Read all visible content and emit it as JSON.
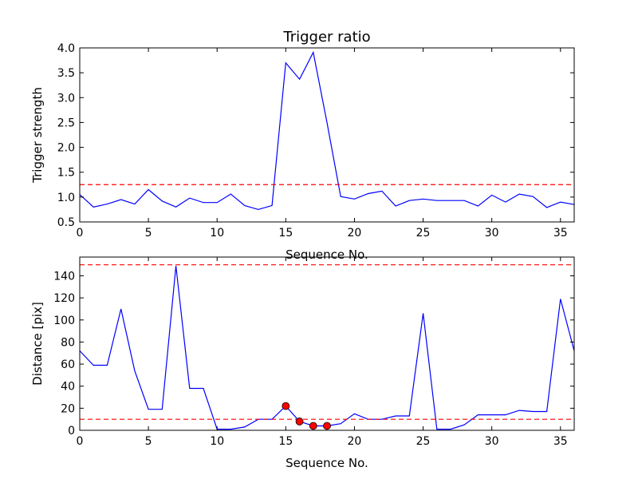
{
  "chart_data": [
    {
      "type": "line",
      "title": "Trigger ratio",
      "xlabel": "Sequence No.",
      "ylabel": "Trigger strength",
      "xlim": [
        0,
        36
      ],
      "ylim": [
        0.5,
        4.0
      ],
      "xticks": [
        "0",
        "5",
        "10",
        "15",
        "20",
        "25",
        "30",
        "35"
      ],
      "yticks": [
        "0.5",
        "1.0",
        "1.5",
        "2.0",
        "2.5",
        "3.0",
        "3.5",
        "4.0"
      ],
      "grid": false,
      "series": [
        {
          "color": "#0000ff",
          "x": [
            0,
            1,
            2,
            3,
            4,
            5,
            6,
            7,
            8,
            9,
            10,
            11,
            12,
            13,
            14,
            15,
            16,
            17,
            18,
            19,
            20,
            21,
            22,
            23,
            24,
            25,
            26,
            27,
            28,
            29,
            30,
            31,
            32,
            33,
            34,
            35,
            36
          ],
          "y": [
            1.05,
            0.8,
            0.86,
            0.95,
            0.86,
            1.15,
            0.92,
            0.8,
            0.98,
            0.89,
            0.89,
            1.06,
            0.83,
            0.75,
            0.83,
            3.7,
            3.37,
            3.91,
            2.5,
            1.01,
            0.96,
            1.07,
            1.12,
            0.82,
            0.93,
            0.96,
            0.93,
            0.93,
            0.93,
            0.82,
            1.04,
            0.9,
            1.06,
            1.01,
            0.79,
            0.9,
            0.85
          ]
        }
      ],
      "threshold_lines": [
        {
          "y": 1.25,
          "color": "#ff0000",
          "style": "dashed"
        }
      ]
    },
    {
      "type": "line",
      "title": "",
      "xlabel": "Sequence No.",
      "ylabel": "Distance [pix]",
      "xlim": [
        0,
        36
      ],
      "ylim": [
        0,
        157
      ],
      "xticks": [
        "0",
        "5",
        "10",
        "15",
        "20",
        "25",
        "30",
        "35"
      ],
      "yticks": [
        "0",
        "20",
        "40",
        "60",
        "80",
        "100",
        "120",
        "140"
      ],
      "grid": false,
      "series": [
        {
          "color": "#0000ff",
          "x": [
            0,
            1,
            2,
            3,
            4,
            5,
            6,
            7,
            8,
            9,
            10,
            11,
            12,
            13,
            14,
            15,
            16,
            17,
            18,
            19,
            20,
            21,
            22,
            23,
            24,
            25,
            26,
            27,
            28,
            29,
            30,
            31,
            32,
            33,
            34,
            35,
            36
          ],
          "y": [
            72,
            59,
            59,
            110,
            54,
            19,
            19,
            149,
            38,
            38,
            1,
            1,
            3,
            10,
            10,
            22,
            8,
            4,
            4,
            6,
            15,
            10,
            10,
            13,
            13,
            106,
            1,
            1,
            5,
            14,
            14,
            14,
            18,
            17,
            17,
            119,
            72
          ]
        }
      ],
      "markers": {
        "color": "#ff0000",
        "x": [
          15,
          16,
          17,
          18
        ],
        "y": [
          22,
          8,
          4,
          4
        ]
      },
      "threshold_lines": [
        {
          "y": 150,
          "color": "#ff0000",
          "style": "dashed"
        },
        {
          "y": 10,
          "color": "#ff0000",
          "style": "dashed"
        }
      ]
    }
  ]
}
